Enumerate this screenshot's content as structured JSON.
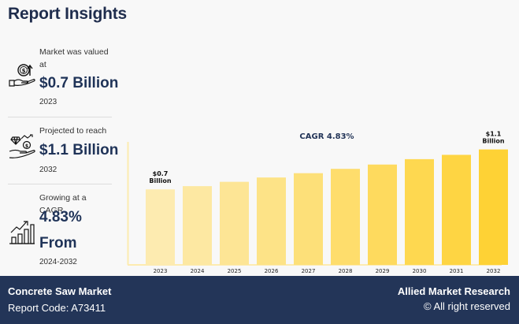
{
  "header": {
    "title": "Report Insights"
  },
  "stats": [
    {
      "label_line1": "Market was valued",
      "label_line2": "at",
      "value": "$0.7 Billion",
      "year": "2023",
      "icon": "money-hand-growth-icon"
    },
    {
      "label_line1": "Projected to reach",
      "value": "$1.1 Billion",
      "year": "2032",
      "icon": "diamond-hand-icon"
    },
    {
      "label_line1": "Growing at a CAGR",
      "value": "4.83%",
      "value2": "From",
      "year": "2024-2032",
      "icon": "growth-bar-chart-icon"
    }
  ],
  "footer": {
    "market_name": "Concrete Saw Market",
    "report_code": "Report Code: A73411",
    "brand": "Allied Market Research",
    "rights": "© All right reserved"
  },
  "colors": {
    "navy": "#233558",
    "bar_light": "#fdebb0",
    "bar_dark": "#fed235"
  },
  "chart_data": {
    "type": "bar",
    "title": "CAGR 4.83%",
    "categories": [
      "2023",
      "2024",
      "2025",
      "2026",
      "2027",
      "2028",
      "2029",
      "2030",
      "2031",
      "2032"
    ],
    "values": [
      0.7,
      0.73,
      0.77,
      0.81,
      0.85,
      0.89,
      0.93,
      0.98,
      1.02,
      1.07
    ],
    "units": "Billion USD",
    "annotations": [
      {
        "category": "2023",
        "line1": "$0.7",
        "line2": "Billion"
      },
      {
        "category": "2032",
        "line1": "$1.1",
        "line2": "Billion"
      }
    ],
    "ylim": [
      0,
      1.14
    ],
    "grid": false,
    "xlabel": "",
    "ylabel": ""
  }
}
